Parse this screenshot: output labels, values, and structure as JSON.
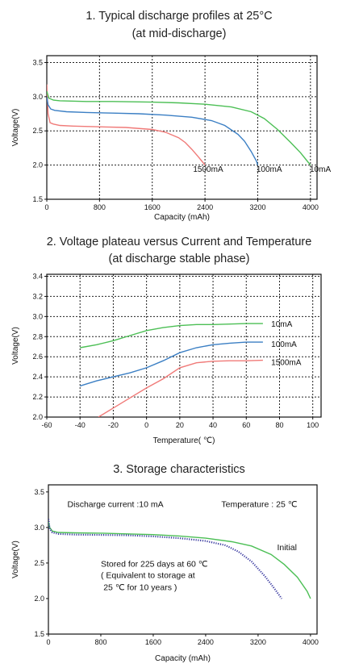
{
  "chart_data": [
    {
      "type": "line",
      "title_lines": [
        "1. Typical discharge profiles at 25°C",
        "(at mid-discharge)"
      ],
      "xlabel": "Capacity (mAh)",
      "ylabel": "Voltage(V)",
      "xlim": [
        0,
        4100
      ],
      "ylim": [
        1.5,
        3.6
      ],
      "xticks": [
        0,
        800,
        1600,
        2400,
        3200,
        4000
      ],
      "yticks": [
        1.5,
        2.0,
        2.5,
        3.0,
        3.5
      ],
      "grid": true,
      "series": [
        {
          "name": "1500mA",
          "color": "#f07a78",
          "x": [
            0,
            20,
            50,
            100,
            200,
            400,
            800,
            1200,
            1600,
            1800,
            2000,
            2100,
            2200,
            2300,
            2350,
            2400
          ],
          "y": [
            3.18,
            2.75,
            2.62,
            2.6,
            2.58,
            2.57,
            2.56,
            2.55,
            2.52,
            2.48,
            2.4,
            2.33,
            2.23,
            2.12,
            2.06,
            2.0
          ]
        },
        {
          "name": "100mA",
          "color": "#3b7fc4",
          "x": [
            0,
            20,
            60,
            120,
            300,
            600,
            1000,
            1400,
            1800,
            2200,
            2500,
            2700,
            2900,
            3000,
            3100,
            3180,
            3200
          ],
          "y": [
            3.0,
            2.88,
            2.82,
            2.8,
            2.78,
            2.77,
            2.76,
            2.75,
            2.73,
            2.7,
            2.65,
            2.58,
            2.45,
            2.35,
            2.2,
            2.06,
            2.0
          ]
        },
        {
          "name": "10mA",
          "color": "#4cbf55",
          "x": [
            0,
            30,
            100,
            200,
            600,
            1000,
            1600,
            2000,
            2400,
            2800,
            3100,
            3300,
            3500,
            3700,
            3850,
            3950,
            4000
          ],
          "y": [
            3.08,
            2.98,
            2.95,
            2.94,
            2.93,
            2.93,
            2.92,
            2.91,
            2.89,
            2.85,
            2.78,
            2.68,
            2.52,
            2.33,
            2.18,
            2.06,
            2.0
          ]
        }
      ],
      "labels": [
        {
          "text": "1500mA",
          "x": 2220,
          "y": 1.95
        },
        {
          "text": "100mA",
          "x": 3180,
          "y": 1.95
        },
        {
          "text": "10mA",
          "x": 3990,
          "y": 1.95
        }
      ]
    },
    {
      "type": "line",
      "title_lines": [
        "2. Voltage plateau versus Current and Temperature",
        "(at discharge stable phase)"
      ],
      "xlabel": "Temperature(  ℃)",
      "ylabel": "Voltage(V)",
      "xlim": [
        -60,
        105
      ],
      "ylim": [
        2.0,
        3.42
      ],
      "xticks": [
        -60,
        -40,
        -20,
        0,
        20,
        40,
        60,
        80,
        100
      ],
      "yticks": [
        2.0,
        2.2,
        2.4,
        2.6,
        2.8,
        3.0,
        3.2,
        3.4
      ],
      "grid": true,
      "series": [
        {
          "name": "10mA",
          "color": "#4cbf55",
          "x": [
            -40,
            -30,
            -20,
            -10,
            0,
            10,
            20,
            30,
            40,
            50,
            60,
            70
          ],
          "y": [
            2.69,
            2.72,
            2.76,
            2.81,
            2.86,
            2.89,
            2.91,
            2.92,
            2.92,
            2.925,
            2.93,
            2.93
          ]
        },
        {
          "name": "100mA",
          "color": "#3b7fc4",
          "x": [
            -40,
            -30,
            -20,
            -10,
            0,
            10,
            20,
            30,
            40,
            50,
            60,
            70
          ],
          "y": [
            2.31,
            2.36,
            2.4,
            2.44,
            2.49,
            2.56,
            2.64,
            2.69,
            2.72,
            2.735,
            2.745,
            2.745
          ]
        },
        {
          "name": "1500mA",
          "color": "#f07a78",
          "x": [
            -29,
            -20,
            -10,
            0,
            10,
            20,
            30,
            40,
            50,
            60,
            70
          ],
          "y": [
            2.0,
            2.09,
            2.19,
            2.29,
            2.38,
            2.49,
            2.54,
            2.555,
            2.56,
            2.56,
            2.565
          ]
        }
      ],
      "labels": [
        {
          "text": "10mA",
          "x": 75,
          "y": 2.93
        },
        {
          "text": "100mA",
          "x": 75,
          "y": 2.73
        },
        {
          "text": "1500mA",
          "x": 75,
          "y": 2.55
        }
      ]
    },
    {
      "type": "line",
      "title_lines": [
        "3. Storage characteristics"
      ],
      "xlabel": "Capacity (mAh)",
      "ylabel": "Voltage(V)",
      "xlim": [
        0,
        4100
      ],
      "ylim": [
        1.5,
        3.6
      ],
      "xticks": [
        0,
        800,
        1600,
        2400,
        3200,
        4000
      ],
      "yticks": [
        1.5,
        2.0,
        2.5,
        3.0,
        3.5
      ],
      "grid": false,
      "series": [
        {
          "name": "Initial",
          "color": "#4cbf55",
          "x": [
            0,
            20,
            60,
            150,
            400,
            800,
            1200,
            1600,
            2000,
            2400,
            2800,
            3100,
            3400,
            3600,
            3800,
            3950,
            4000
          ],
          "y": [
            3.08,
            3.0,
            2.95,
            2.93,
            2.925,
            2.92,
            2.91,
            2.9,
            2.88,
            2.85,
            2.8,
            2.74,
            2.62,
            2.48,
            2.3,
            2.1,
            2.0
          ]
        },
        {
          "name": "Stored for 225 days at 60  ℃",
          "color": "#3a3aa0",
          "x": [
            0,
            20,
            60,
            150,
            400,
            800,
            1200,
            1600,
            2000,
            2400,
            2700,
            2900,
            3100,
            3300,
            3450,
            3560
          ],
          "y": [
            3.12,
            2.98,
            2.93,
            2.91,
            2.9,
            2.895,
            2.89,
            2.875,
            2.85,
            2.81,
            2.75,
            2.66,
            2.52,
            2.32,
            2.14,
            2.0
          ]
        }
      ],
      "annotations": [
        {
          "text": "Discharge current  :10  mA",
          "x": 290,
          "y": 3.29
        },
        {
          "text": "Temperature  :  25  ℃",
          "x": 2640,
          "y": 3.29
        },
        {
          "text": "Initial",
          "x": 3490,
          "y": 2.68
        },
        {
          "text": "Stored for 225 days at 60   ℃",
          "x": 800,
          "y": 2.45
        },
        {
          "text": "( Equivalent to storage at",
          "x": 800,
          "y": 2.29
        },
        {
          "text": "25 ℃  for 10 years   )",
          "x": 840,
          "y": 2.12
        }
      ]
    }
  ]
}
